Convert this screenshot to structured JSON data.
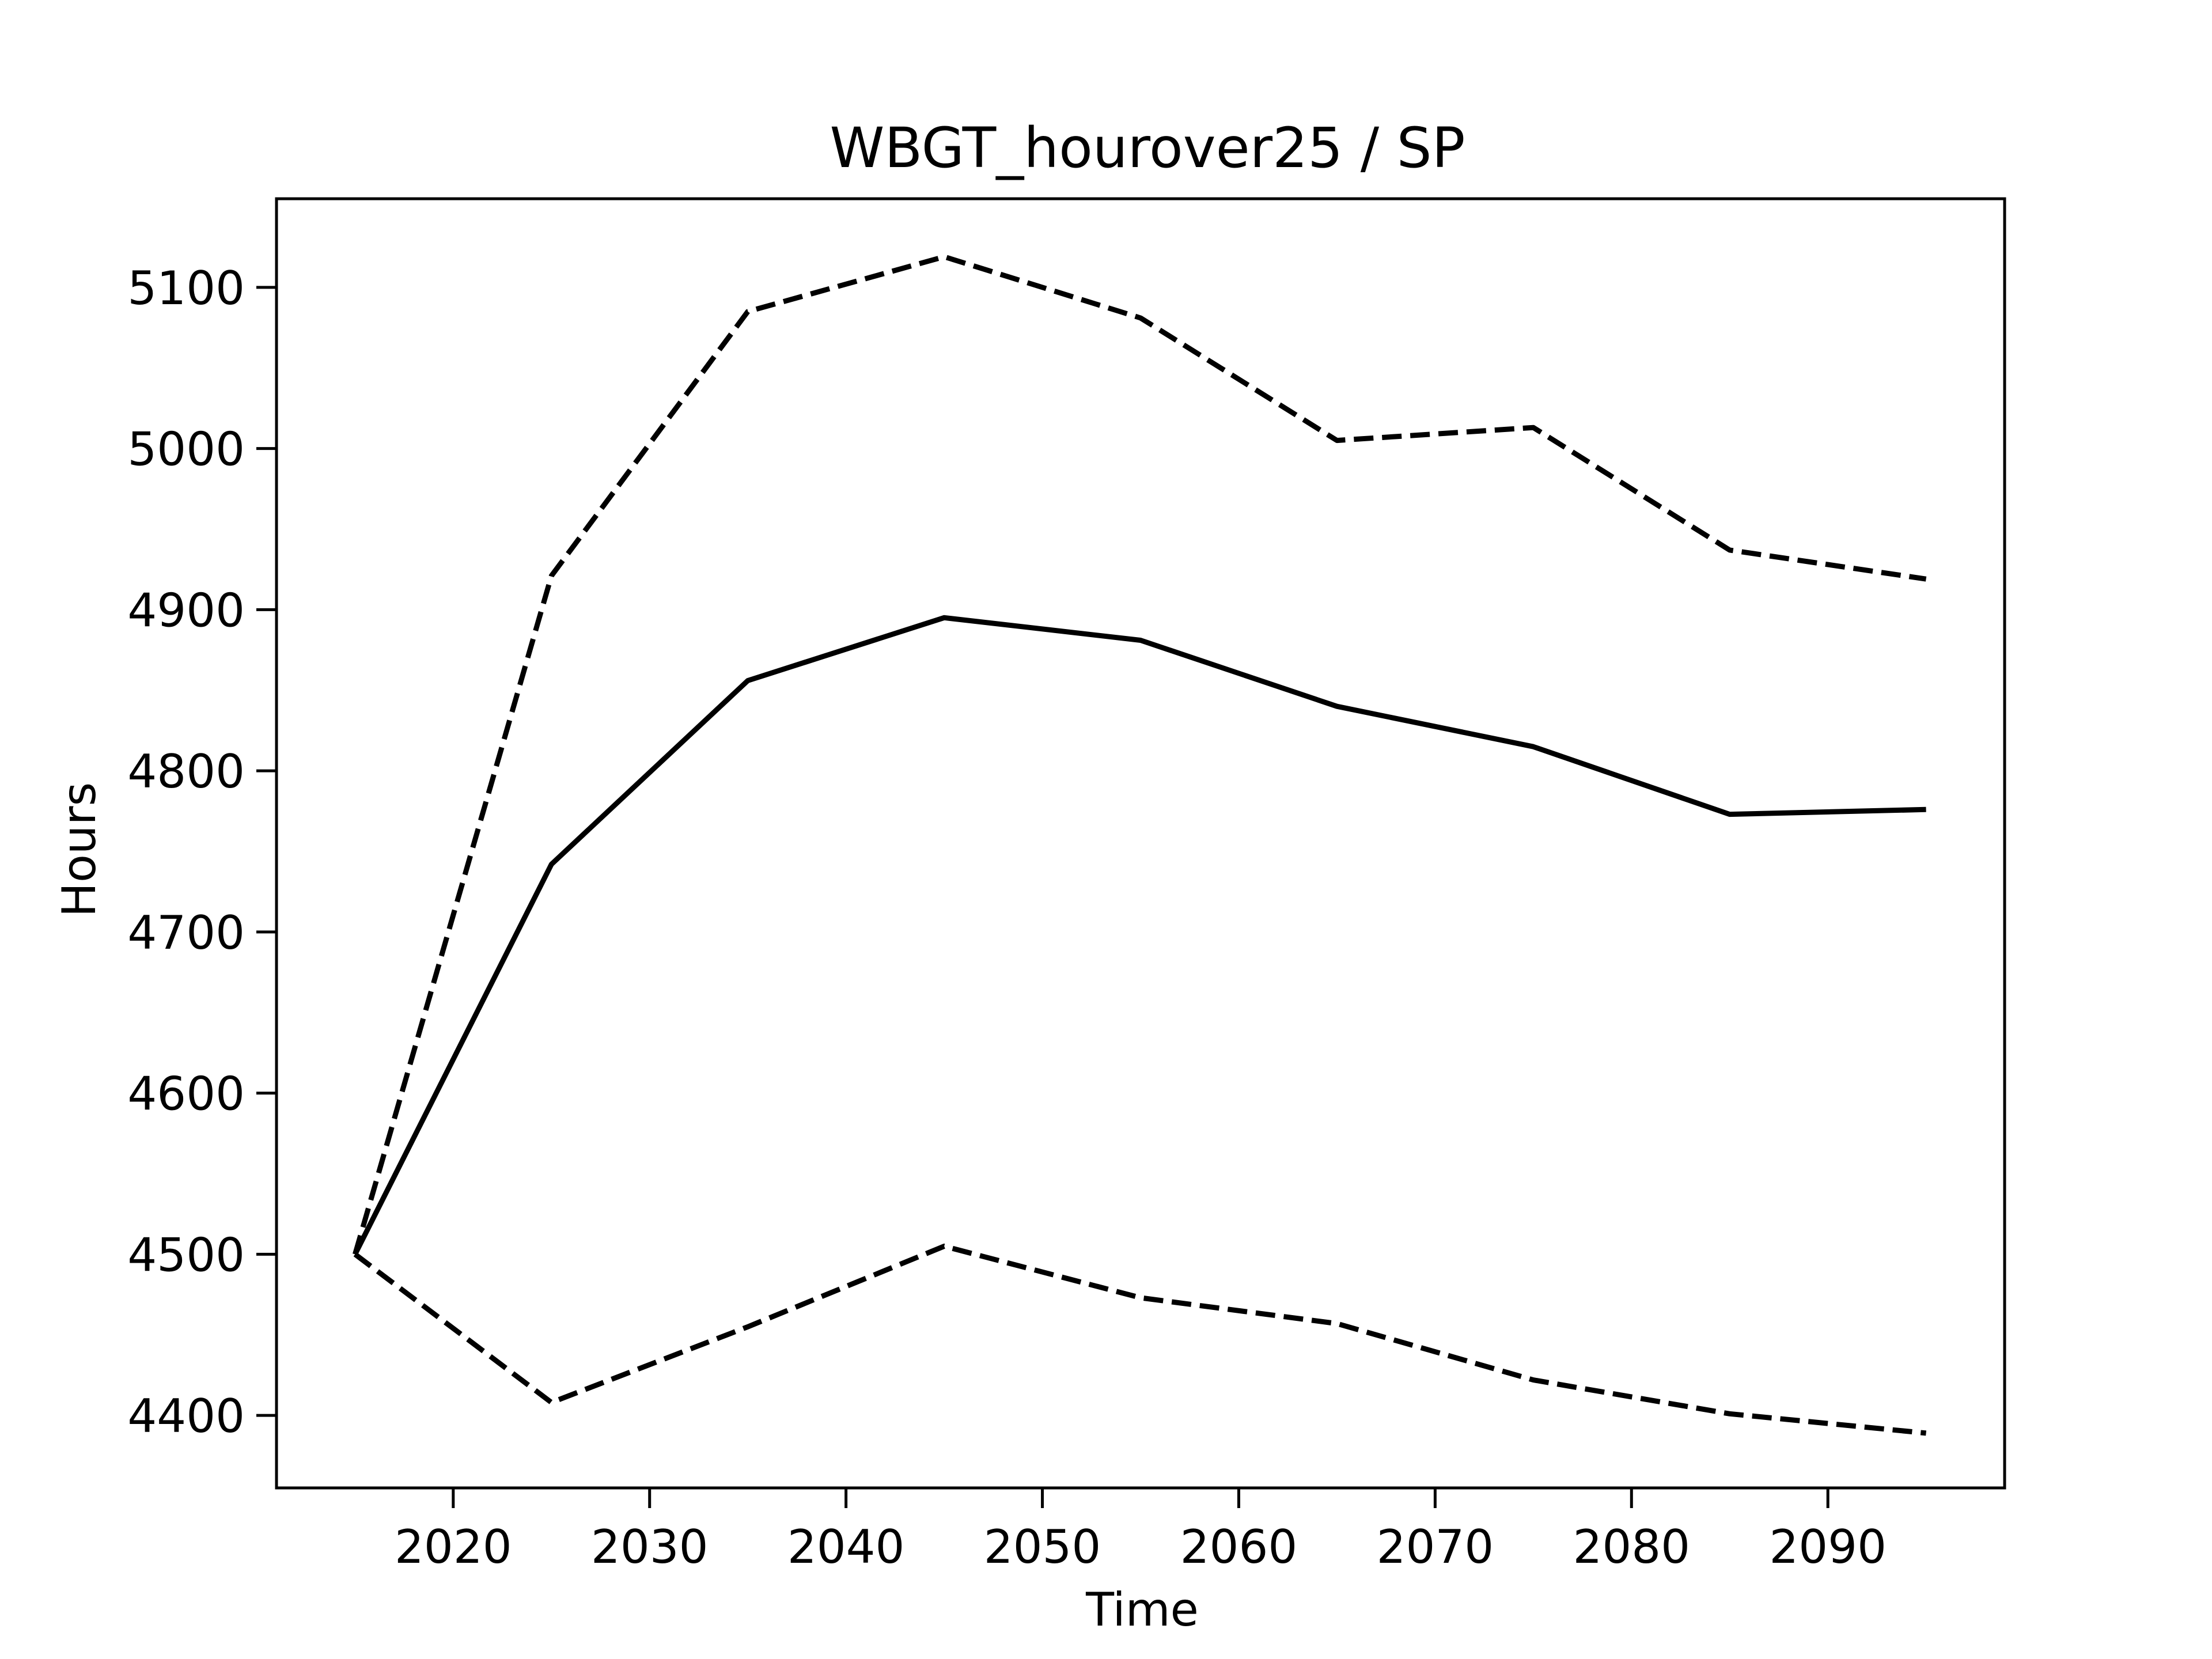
{
  "chart_data": {
    "type": "line",
    "title": "WBGT_hourover25 / SP",
    "xlabel": "Time",
    "ylabel": "Hours",
    "xlim": [
      2011,
      2099
    ],
    "ylim": [
      4355,
      5155
    ],
    "xticks": [
      2020,
      2030,
      2040,
      2050,
      2060,
      2070,
      2080,
      2090
    ],
    "yticks": [
      4400,
      4500,
      4600,
      4700,
      4800,
      4900,
      5000,
      5100
    ],
    "grid": false,
    "legend": "none",
    "x": [
      2015,
      2025,
      2035,
      2045,
      2055,
      2065,
      2075,
      2085,
      2095
    ],
    "series": [
      {
        "style": "solid",
        "color": "#000000",
        "values": [
          4500,
          4742,
          4856,
          4895,
          4881,
          4840,
          4815,
          4773,
          4776
        ]
      },
      {
        "style": "dashed",
        "color": "#000000",
        "values": [
          4500,
          4921,
          5085,
          5119,
          5081,
          5005,
          5013,
          4937,
          4919
        ]
      },
      {
        "style": "dashed",
        "color": "#000000",
        "values": [
          4500,
          4408,
          4455,
          4505,
          4473,
          4457,
          4422,
          4401,
          4389
        ]
      }
    ]
  }
}
